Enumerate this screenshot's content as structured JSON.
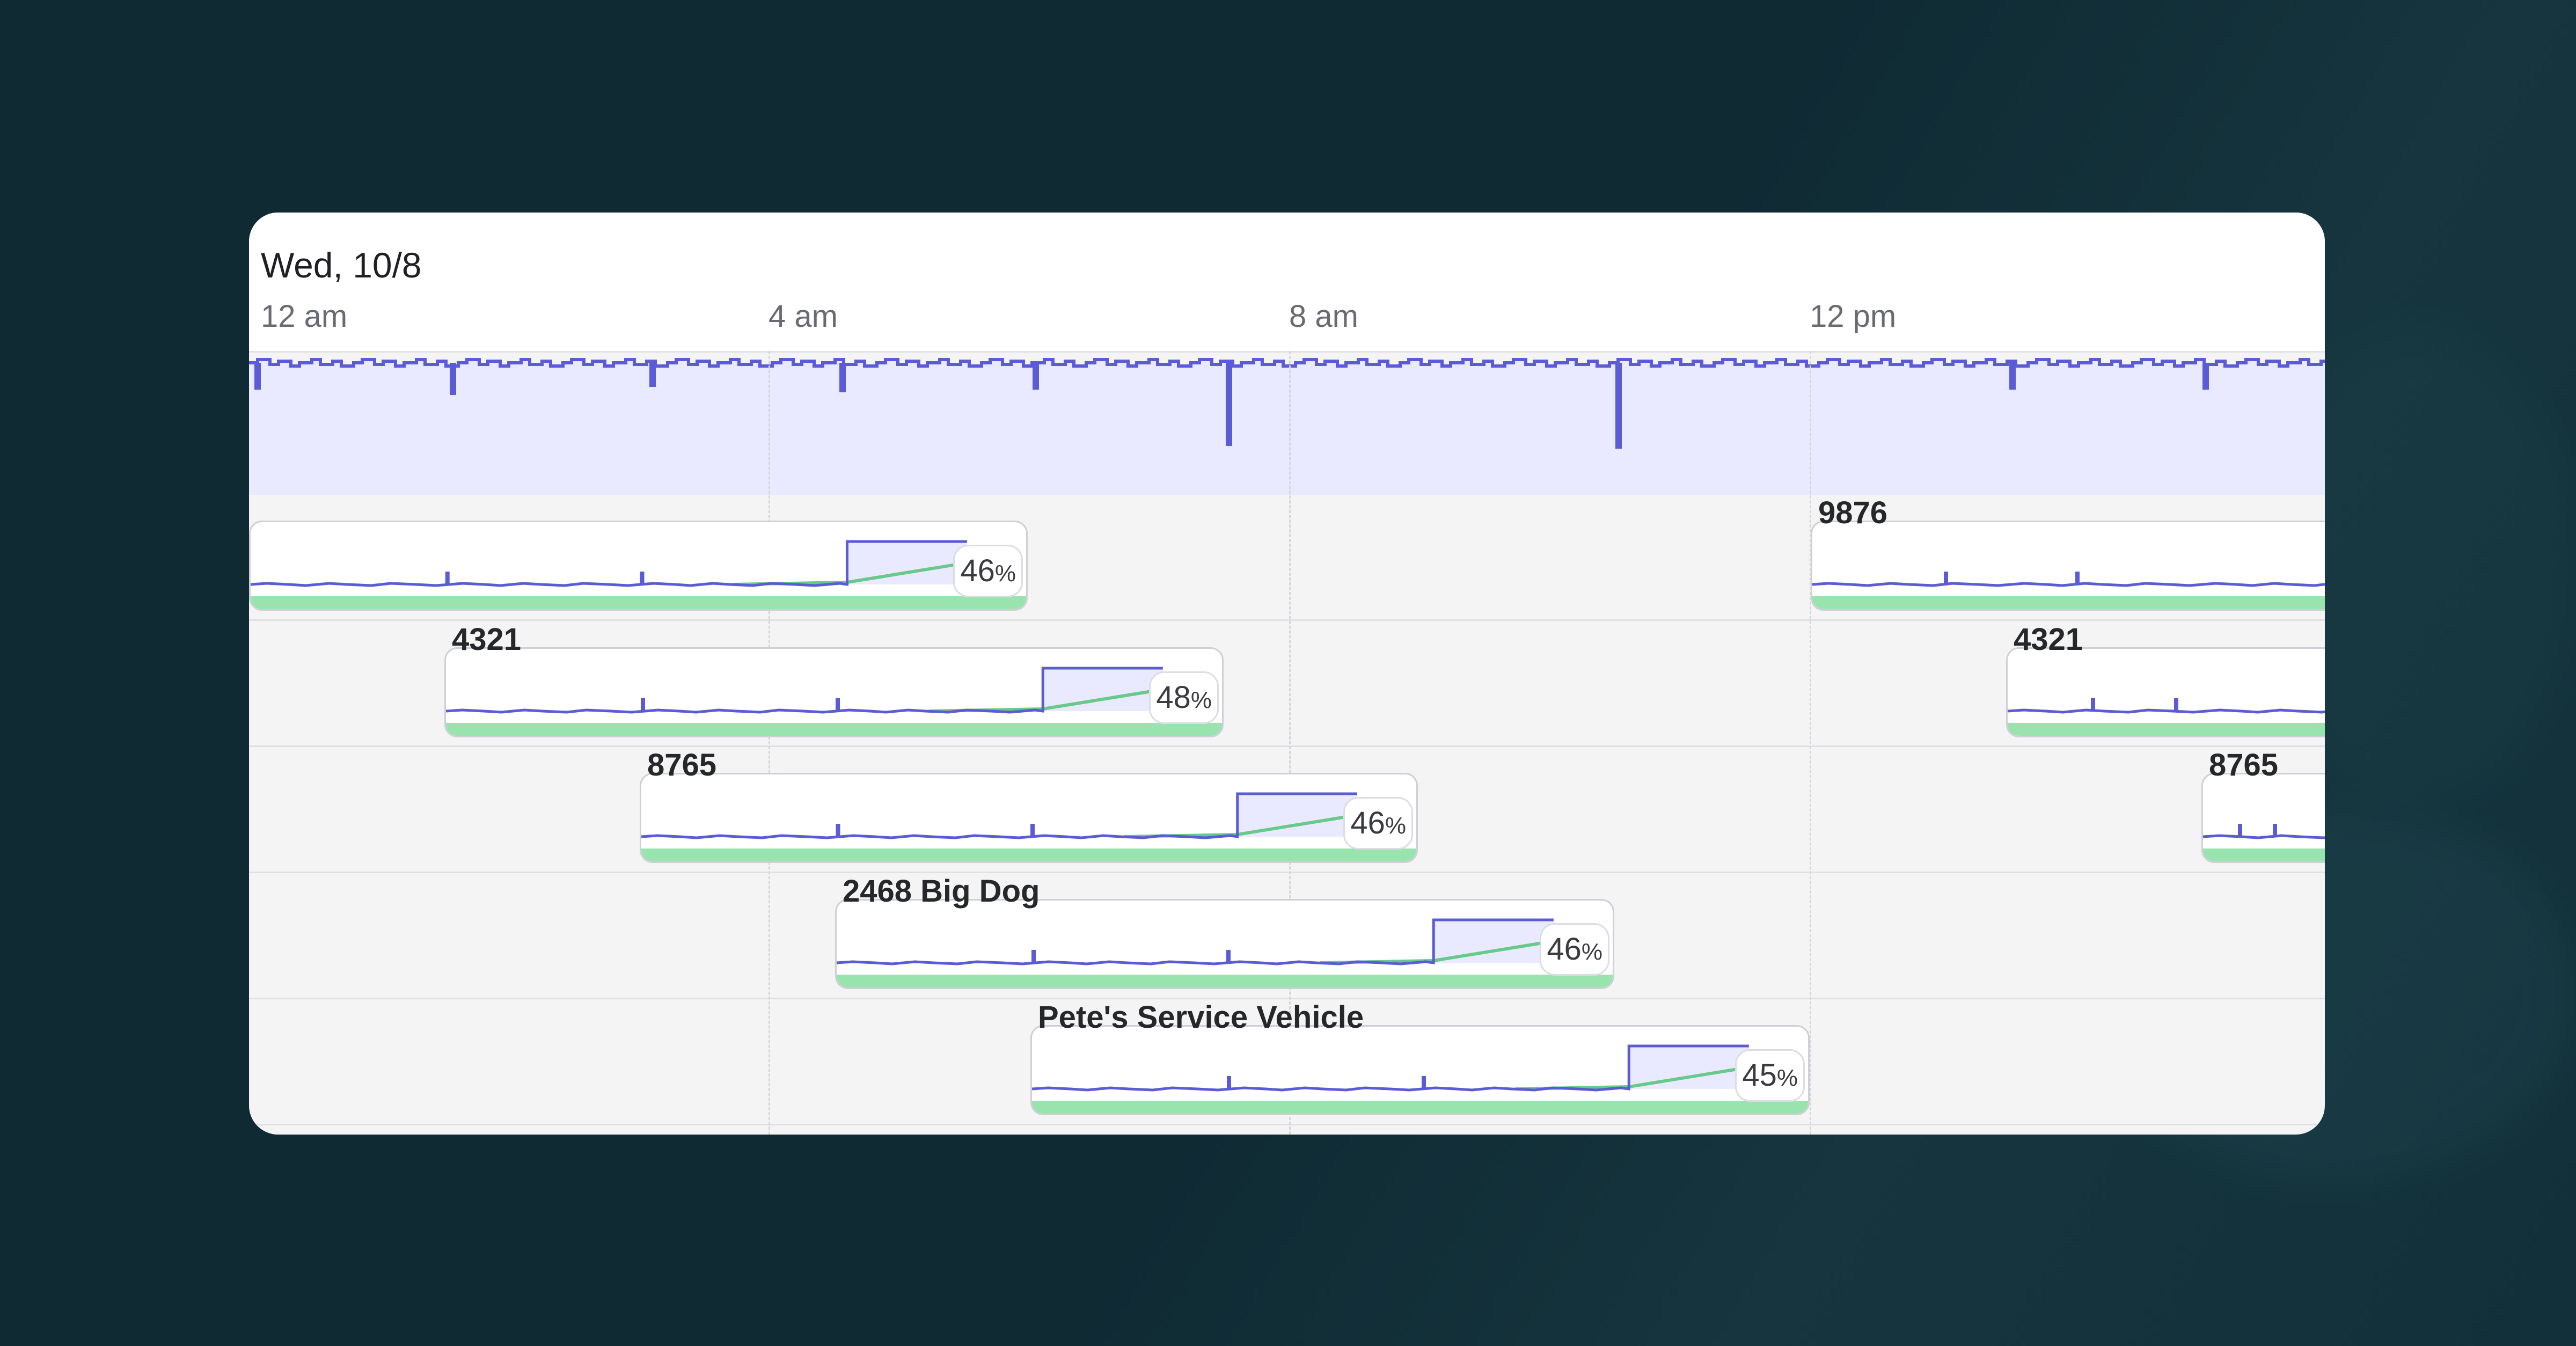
{
  "timeline": {
    "date": "Wed, 10/8",
    "hours": [
      "12 am",
      "4 am",
      "8 am",
      "12 pm"
    ]
  },
  "colors": {
    "usage_line": "#5b5bd6",
    "usage_fill": "#e9e9ff",
    "battery_line": "#67c98a",
    "battery_bar": "#98e3ae"
  },
  "vehicles": [
    {
      "name": "",
      "percent": "46",
      "unit": "%"
    },
    {
      "name": "9876",
      "percent": "",
      "unit": ""
    },
    {
      "name": "4321",
      "percent": "48",
      "unit": "%"
    },
    {
      "name": "4321",
      "percent": "",
      "unit": ""
    },
    {
      "name": "8765",
      "percent": "46",
      "unit": "%"
    },
    {
      "name": "8765",
      "percent": "",
      "unit": ""
    },
    {
      "name": "2468 Big Dog",
      "percent": "46",
      "unit": "%"
    },
    {
      "name": "Pete's Service Vehicle",
      "percent": "45",
      "unit": "%"
    }
  ]
}
